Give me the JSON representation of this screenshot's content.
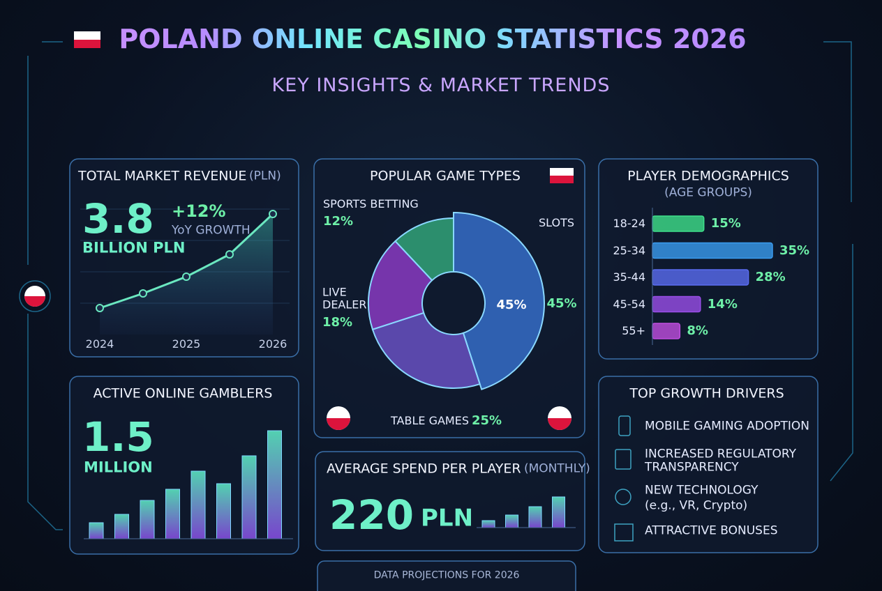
{
  "header": {
    "title": "POLAND ONLINE CASINO STATISTICS 2026",
    "subtitle": "KEY INSIGHTS & MARKET TRENDS"
  },
  "chart_data": [
    {
      "type": "line",
      "title": "TOTAL MARKET REVENUE",
      "title_unit": "(PLN)",
      "headline": "3.8",
      "headline_unit": "BILLION PLN",
      "growth": "+12%",
      "growth_label": "YoY GROWTH",
      "categories": [
        "2024",
        null,
        "2025",
        null,
        "2026"
      ],
      "values": [
        38,
        59,
        83,
        115,
        173
      ],
      "ylim": [
        0,
        200
      ],
      "color": "#6be8c0"
    },
    {
      "type": "donut",
      "title": "POPULAR GAME TYPES",
      "categories": [
        "SLOTS",
        "TABLE GAMES",
        "LIVE DEALER",
        "SPORTS BETTING"
      ],
      "values": [
        45,
        25,
        18,
        12
      ],
      "value_labels": [
        "45%",
        "25%",
        "18%",
        "12%"
      ],
      "colors": [
        "#3b78dc",
        "#7458d6",
        "#9a3fd6",
        "#37b583"
      ]
    },
    {
      "type": "hbar",
      "title": "PLAYER DEMOGRAPHICS",
      "subtitle": "(AGE GROUPS)",
      "categories": [
        "18-24",
        "25-34",
        "35-44",
        "45-54",
        "55+"
      ],
      "values": [
        15,
        35,
        28,
        14,
        8
      ],
      "value_labels": [
        "15%",
        "35%",
        "28%",
        "14%",
        "8%"
      ],
      "xlim": [
        0,
        35
      ],
      "colors": [
        "#3fe08a",
        "#3a9bef",
        "#5a6cf0",
        "#9a4ee8",
        "#c04ee0"
      ]
    },
    {
      "type": "bar",
      "title": "ACTIVE ONLINE GAMBLERS",
      "headline": "1.5",
      "headline_unit": "MILLION",
      "values": [
        23,
        35,
        55,
        71,
        97,
        79,
        119,
        155
      ],
      "ylim": [
        0,
        160
      ]
    },
    {
      "type": "bar",
      "title": "AVERAGE SPEND PER PLAYER",
      "title_unit": "(MONTHLY)",
      "headline": "220",
      "headline_unit": "PLN",
      "values": [
        10,
        18,
        30,
        44
      ],
      "ylim": [
        0,
        50
      ]
    }
  ],
  "drivers": {
    "title": "TOP GROWTH DRIVERS",
    "items": [
      {
        "label": "MOBILE GAMING ADOPTION"
      },
      {
        "label": "INCREASED REGULATORY TRANSPARENCY"
      },
      {
        "label": "NEW TECHNOLOGY",
        "detail": "(e.g., VR, Crypto)"
      },
      {
        "label": "ATTRACTIVE BONUSES"
      }
    ]
  },
  "footer": "DATA PROJECTIONS FOR 2026"
}
